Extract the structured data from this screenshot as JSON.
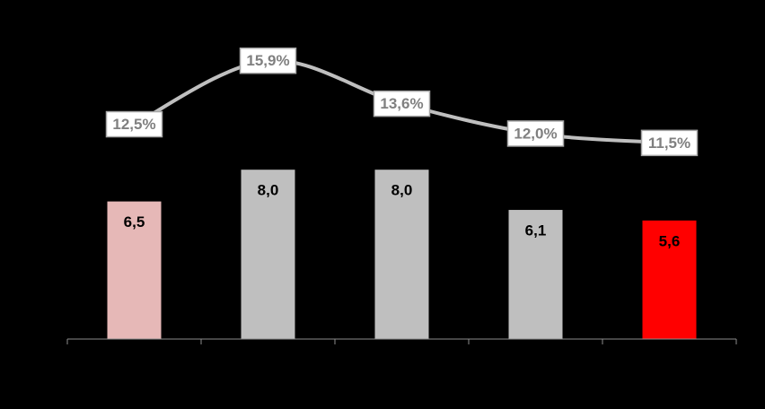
{
  "chart_data": {
    "type": "bar",
    "categories": [
      null,
      null,
      null,
      null,
      null
    ],
    "series": [
      {
        "type": "bar",
        "colors": [
          "#e6b8b7",
          "#bfbfbf",
          "#bfbfbf",
          "#bfbfbf",
          "#ff0000"
        ],
        "values": [
          6.5,
          8.0,
          8.0,
          6.1,
          5.6
        ],
        "value_labels": [
          "6,5",
          "8,0",
          "8,0",
          "6,1",
          "5,6"
        ]
      },
      {
        "type": "line",
        "axis": "y2",
        "color": "#bfbfbf",
        "values": [
          12.5,
          15.9,
          13.6,
          12.0,
          11.5
        ],
        "value_labels": [
          "12,5%",
          "15,9%",
          "13,6%",
          "12,0%",
          "11,5%"
        ]
      }
    ],
    "ylim": [
      0,
      15
    ],
    "y2lim": [
      1,
      18
    ]
  }
}
